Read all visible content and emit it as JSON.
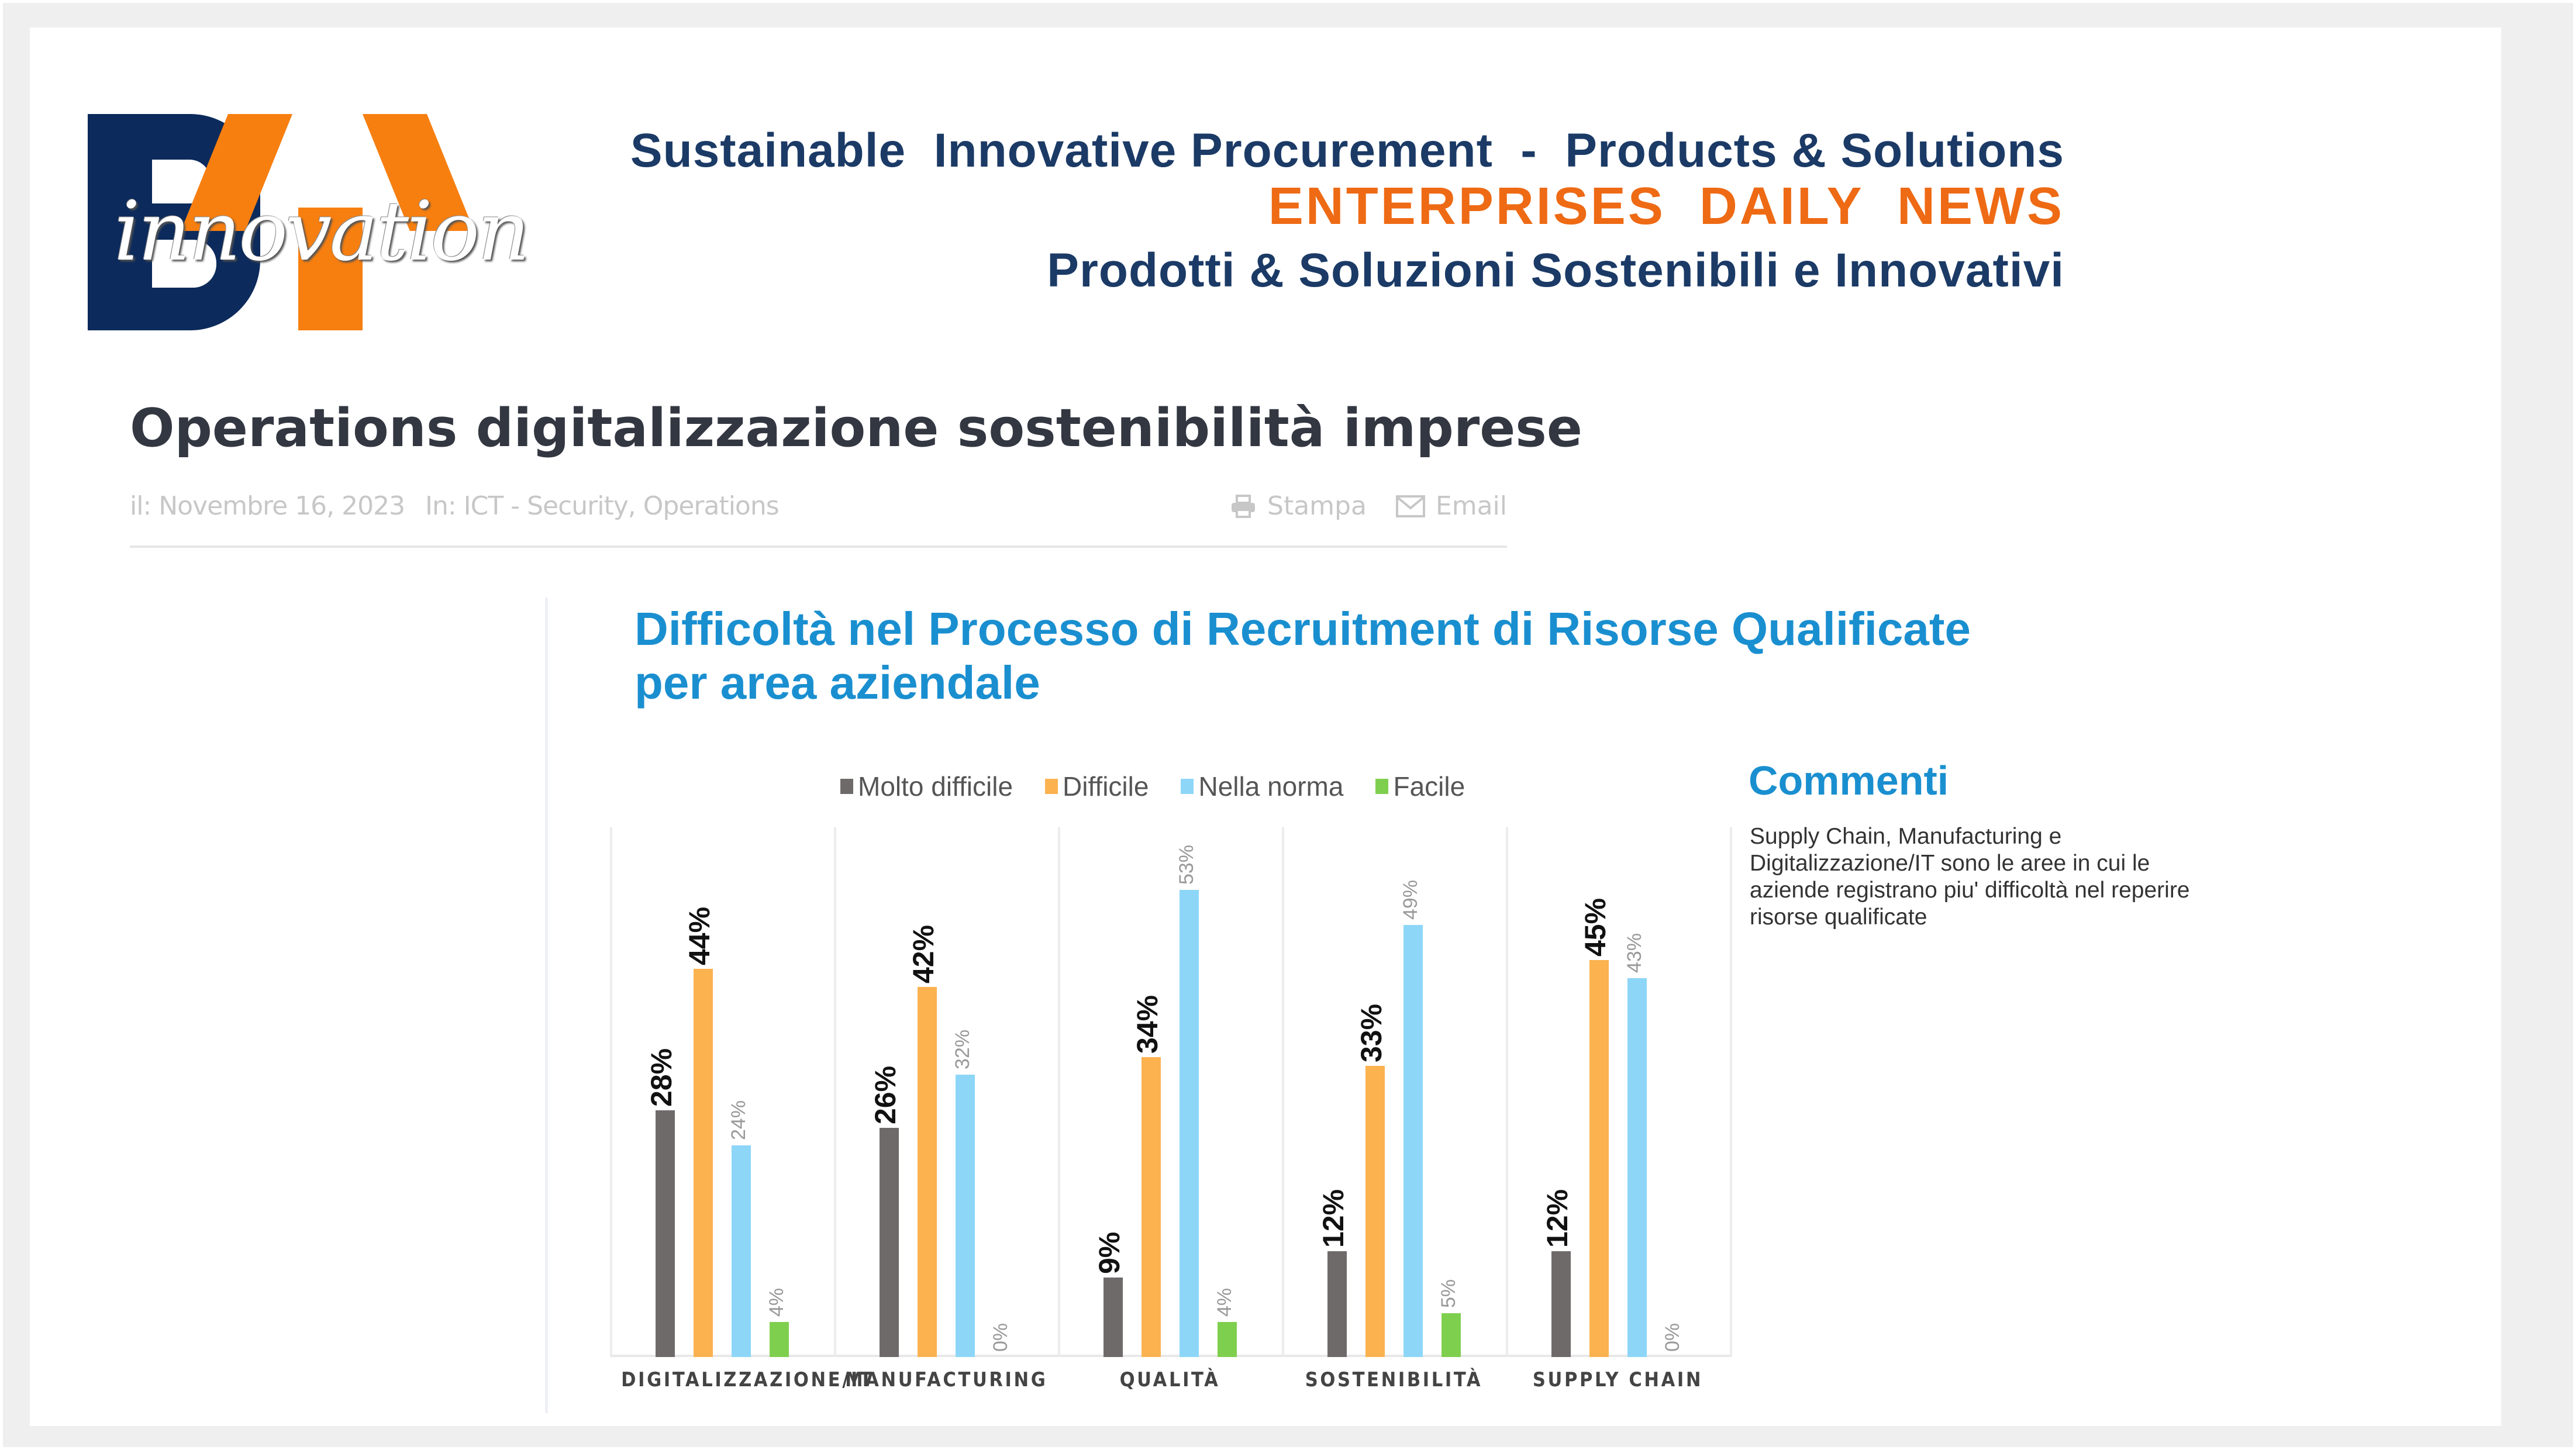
{
  "logo": {
    "letters": "BY",
    "script": "innovation",
    "colors": {
      "b": "#0c2a5b",
      "y": "#f77f10"
    }
  },
  "tagline": {
    "line1": "Sustainable  Innovative Procurement  -  Products & Solutions",
    "line2": "ENTERPRISES  DAILY  NEWS",
    "line3": "Prodotti & Soluzioni Sostenibili e Innovativi"
  },
  "article": {
    "title": "Operations digitalizzazione sostenibilità imprese",
    "date": "il: Novembre 16, 2023",
    "categories": "In: ICT - Security, Operations",
    "actions": {
      "print_icon": "printer-icon",
      "print_label": "Stampa",
      "email_icon": "envelope-icon",
      "email_label": "Email"
    }
  },
  "comments": {
    "title": "Commenti",
    "body": "Supply Chain, Manufacturing  e Digitalizzazione/IT sono le aree in cui le aziende registrano piu' difficoltà nel reperire risorse qualificate"
  },
  "chart_data": {
    "type": "bar",
    "title": "Difficoltà nel Processo di Recruitment di Risorse Qualificate per area aziendale",
    "title_line1": "Difficoltà nel Processo di Recruitment di Risorse Qualificate",
    "title_line2": "per area aziendale",
    "xlabel": "",
    "ylabel": "",
    "ylim": [
      0,
      60
    ],
    "grid": false,
    "legend_position": "top",
    "categories": [
      "DIGITALIZZAZIONE/IT",
      "MANUFACTURING",
      "QUALITÀ",
      "SOSTENIBILITÀ",
      "SUPPLY CHAIN"
    ],
    "series": [
      {
        "name": "Molto difficile",
        "color": "#6f6a6a",
        "values": [
          28,
          26,
          9,
          12,
          12
        ],
        "labels": [
          "28%",
          "26%",
          "9%",
          "12%",
          "12%"
        ],
        "label_style": "bold"
      },
      {
        "name": "Difficile",
        "color": "#fbb24f",
        "values": [
          44,
          42,
          34,
          33,
          45
        ],
        "labels": [
          "44%",
          "42%",
          "34%",
          "33%",
          "45%"
        ],
        "label_style": "bold"
      },
      {
        "name": "Nella norma",
        "color": "#8dd6f8",
        "values": [
          24,
          32,
          53,
          49,
          43
        ],
        "labels": [
          "24%",
          "32%",
          "53%",
          "49%",
          "43%"
        ],
        "label_style": "light"
      },
      {
        "name": "Facile",
        "color": "#7fcf4f",
        "values": [
          4,
          0,
          4,
          5,
          0
        ],
        "labels": [
          "4%",
          "0%",
          "4%",
          "5%",
          "0%"
        ],
        "label_style": "light"
      }
    ]
  }
}
